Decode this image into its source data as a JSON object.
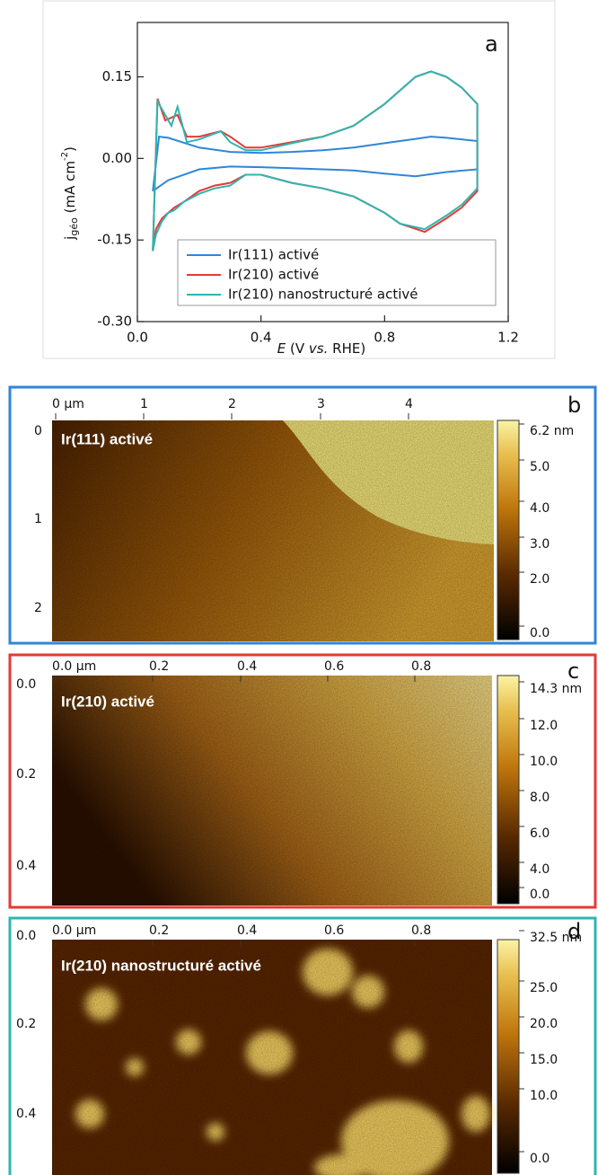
{
  "chart_data": {
    "type": "line",
    "letter": "a",
    "ylabel_parts": [
      "j",
      "géo",
      " (mA cm",
      "-2",
      ")"
    ],
    "xlabel_parts": [
      "E",
      " (V ",
      "vs.",
      " RHE)"
    ],
    "xlim": [
      0,
      1.2
    ],
    "xticks": [
      "0.0",
      "0.4",
      "0.8",
      "1.2"
    ],
    "xtick_values": [
      0,
      0.4,
      0.8,
      1.2
    ],
    "ylim": [
      -0.3,
      0.25
    ],
    "yticks": [
      {
        "value": 0.15,
        "label": "0.15"
      },
      {
        "value": 0,
        "label": "0.00"
      },
      {
        "value": -0.15,
        "label": "-0.15"
      },
      {
        "value": -0.3,
        "label": "-0.30"
      }
    ],
    "series": [
      {
        "name": "Ir(111) activé",
        "color": "#2f86d8",
        "x": [
          0.05,
          0.07,
          0.1,
          0.2,
          0.3,
          0.4,
          0.5,
          0.6,
          0.7,
          0.8,
          0.9,
          0.95,
          1.0,
          1.1,
          1.1,
          1.0,
          0.9,
          0.8,
          0.7,
          0.6,
          0.5,
          0.4,
          0.3,
          0.2,
          0.1,
          0.05
        ],
        "values": [
          -0.06,
          0.04,
          0.038,
          0.02,
          0.012,
          0.01,
          0.012,
          0.015,
          0.02,
          0.028,
          0.036,
          0.04,
          0.038,
          0.032,
          -0.02,
          -0.025,
          -0.033,
          -0.028,
          -0.022,
          -0.02,
          -0.018,
          -0.016,
          -0.015,
          -0.02,
          -0.04,
          -0.06
        ]
      },
      {
        "name": "Ir(210) activé",
        "color": "#e53935",
        "x": [
          0.05,
          0.065,
          0.09,
          0.13,
          0.16,
          0.2,
          0.27,
          0.3,
          0.35,
          0.4,
          0.5,
          0.6,
          0.7,
          0.8,
          0.9,
          0.95,
          1.0,
          1.05,
          1.1,
          1.1,
          1.05,
          1.0,
          0.93,
          0.85,
          0.8,
          0.7,
          0.6,
          0.5,
          0.4,
          0.35,
          0.3,
          0.25,
          0.2,
          0.15,
          0.12,
          0.1,
          0.08,
          0.06,
          0.05
        ],
        "values": [
          -0.17,
          0.11,
          0.07,
          0.08,
          0.04,
          0.04,
          0.05,
          0.04,
          0.02,
          0.02,
          0.03,
          0.04,
          0.06,
          0.1,
          0.15,
          0.16,
          0.15,
          0.13,
          0.1,
          -0.06,
          -0.09,
          -0.11,
          -0.135,
          -0.12,
          -0.1,
          -0.07,
          -0.055,
          -0.045,
          -0.03,
          -0.03,
          -0.045,
          -0.05,
          -0.06,
          -0.08,
          -0.09,
          -0.1,
          -0.11,
          -0.13,
          -0.17
        ]
      },
      {
        "name": "Ir(210) nanostructuré activé",
        "color": "#2fb5b0",
        "x": [
          0.05,
          0.065,
          0.09,
          0.11,
          0.13,
          0.16,
          0.2,
          0.27,
          0.3,
          0.35,
          0.4,
          0.5,
          0.6,
          0.7,
          0.8,
          0.9,
          0.95,
          1.0,
          1.05,
          1.1,
          1.1,
          1.05,
          1.0,
          0.93,
          0.85,
          0.8,
          0.7,
          0.6,
          0.5,
          0.4,
          0.35,
          0.3,
          0.25,
          0.2,
          0.15,
          0.12,
          0.1,
          0.08,
          0.06,
          0.05
        ],
        "values": [
          -0.17,
          0.105,
          0.08,
          0.06,
          0.095,
          0.03,
          0.035,
          0.05,
          0.03,
          0.015,
          0.015,
          0.028,
          0.04,
          0.06,
          0.1,
          0.15,
          0.16,
          0.15,
          0.13,
          0.1,
          -0.055,
          -0.085,
          -0.105,
          -0.13,
          -0.12,
          -0.1,
          -0.07,
          -0.055,
          -0.045,
          -0.03,
          -0.03,
          -0.05,
          -0.055,
          -0.065,
          -0.08,
          -0.095,
          -0.1,
          -0.115,
          -0.14,
          -0.17
        ]
      }
    ]
  },
  "afm_panels": [
    {
      "letter": "b",
      "title": "Ir(111) activé",
      "xticks": [
        "0 µm",
        "1",
        "2",
        "3",
        "4"
      ],
      "yticks": [
        "0",
        "1",
        "2"
      ],
      "colorbar": [
        "6.2 nm",
        "5.0",
        "4.0",
        "3.0",
        "2.0",
        "0.0"
      ]
    },
    {
      "letter": "c",
      "title": "Ir(210) activé",
      "xticks": [
        "0.0 µm",
        "0.2",
        "0.4",
        "0.6",
        "0.8"
      ],
      "yticks": [
        "0.0",
        "0.2",
        "0.4"
      ],
      "colorbar": [
        "14.3 nm",
        "12.0",
        "10.0",
        "8.0",
        "6.0",
        "4.0",
        "0.0"
      ]
    },
    {
      "letter": "d",
      "title": "Ir(210) nanostructuré activé",
      "xticks": [
        "0.0 µm",
        "0.2",
        "0.4",
        "0.6",
        "0.8"
      ],
      "yticks": [
        "0.0",
        "0.2",
        "0.4"
      ],
      "colorbar": [
        "32.5 nm",
        "25.0",
        "20.0",
        "15.0",
        "10.0",
        "0.0"
      ]
    }
  ]
}
